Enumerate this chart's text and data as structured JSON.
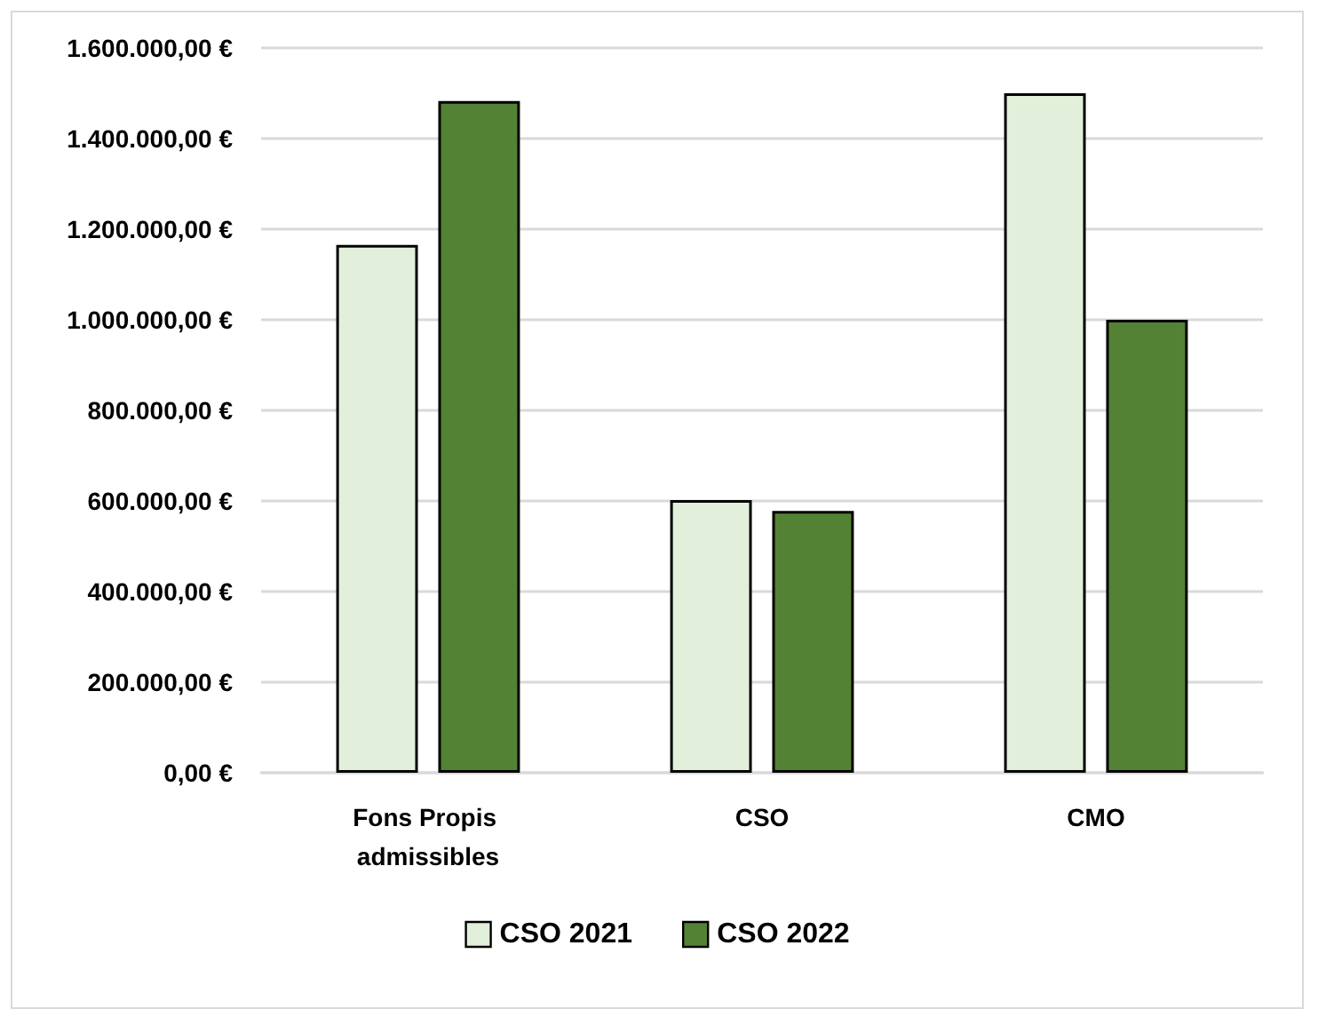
{
  "chart_data": {
    "type": "bar",
    "categories": [
      "Fons Propis admissibles",
      "CSO",
      "CMO"
    ],
    "series": [
      {
        "name": "CSO 2021",
        "color": "#e2efda",
        "values": [
          1165000,
          602000,
          1500000
        ]
      },
      {
        "name": "CSO 2022",
        "color": "#548235",
        "values": [
          1483000,
          578000,
          1000000
        ]
      }
    ],
    "ylim": [
      0,
      1600000
    ],
    "yticks": [
      {
        "value": 0,
        "label": "0,00 €"
      },
      {
        "value": 200000,
        "label": "200.000,00 €"
      },
      {
        "value": 400000,
        "label": "400.000,00 €"
      },
      {
        "value": 600000,
        "label": "600.000,00 €"
      },
      {
        "value": 800000,
        "label": "800.000,00 €"
      },
      {
        "value": 1000000,
        "label": "1.000.000,00 €"
      },
      {
        "value": 1200000,
        "label": "1.200.000,00 €"
      },
      {
        "value": 1400000,
        "label": "1.400.000,00 €"
      },
      {
        "value": 1600000,
        "label": "1.600.000,00 €"
      }
    ],
    "grid": "y",
    "legend": "bottom"
  }
}
